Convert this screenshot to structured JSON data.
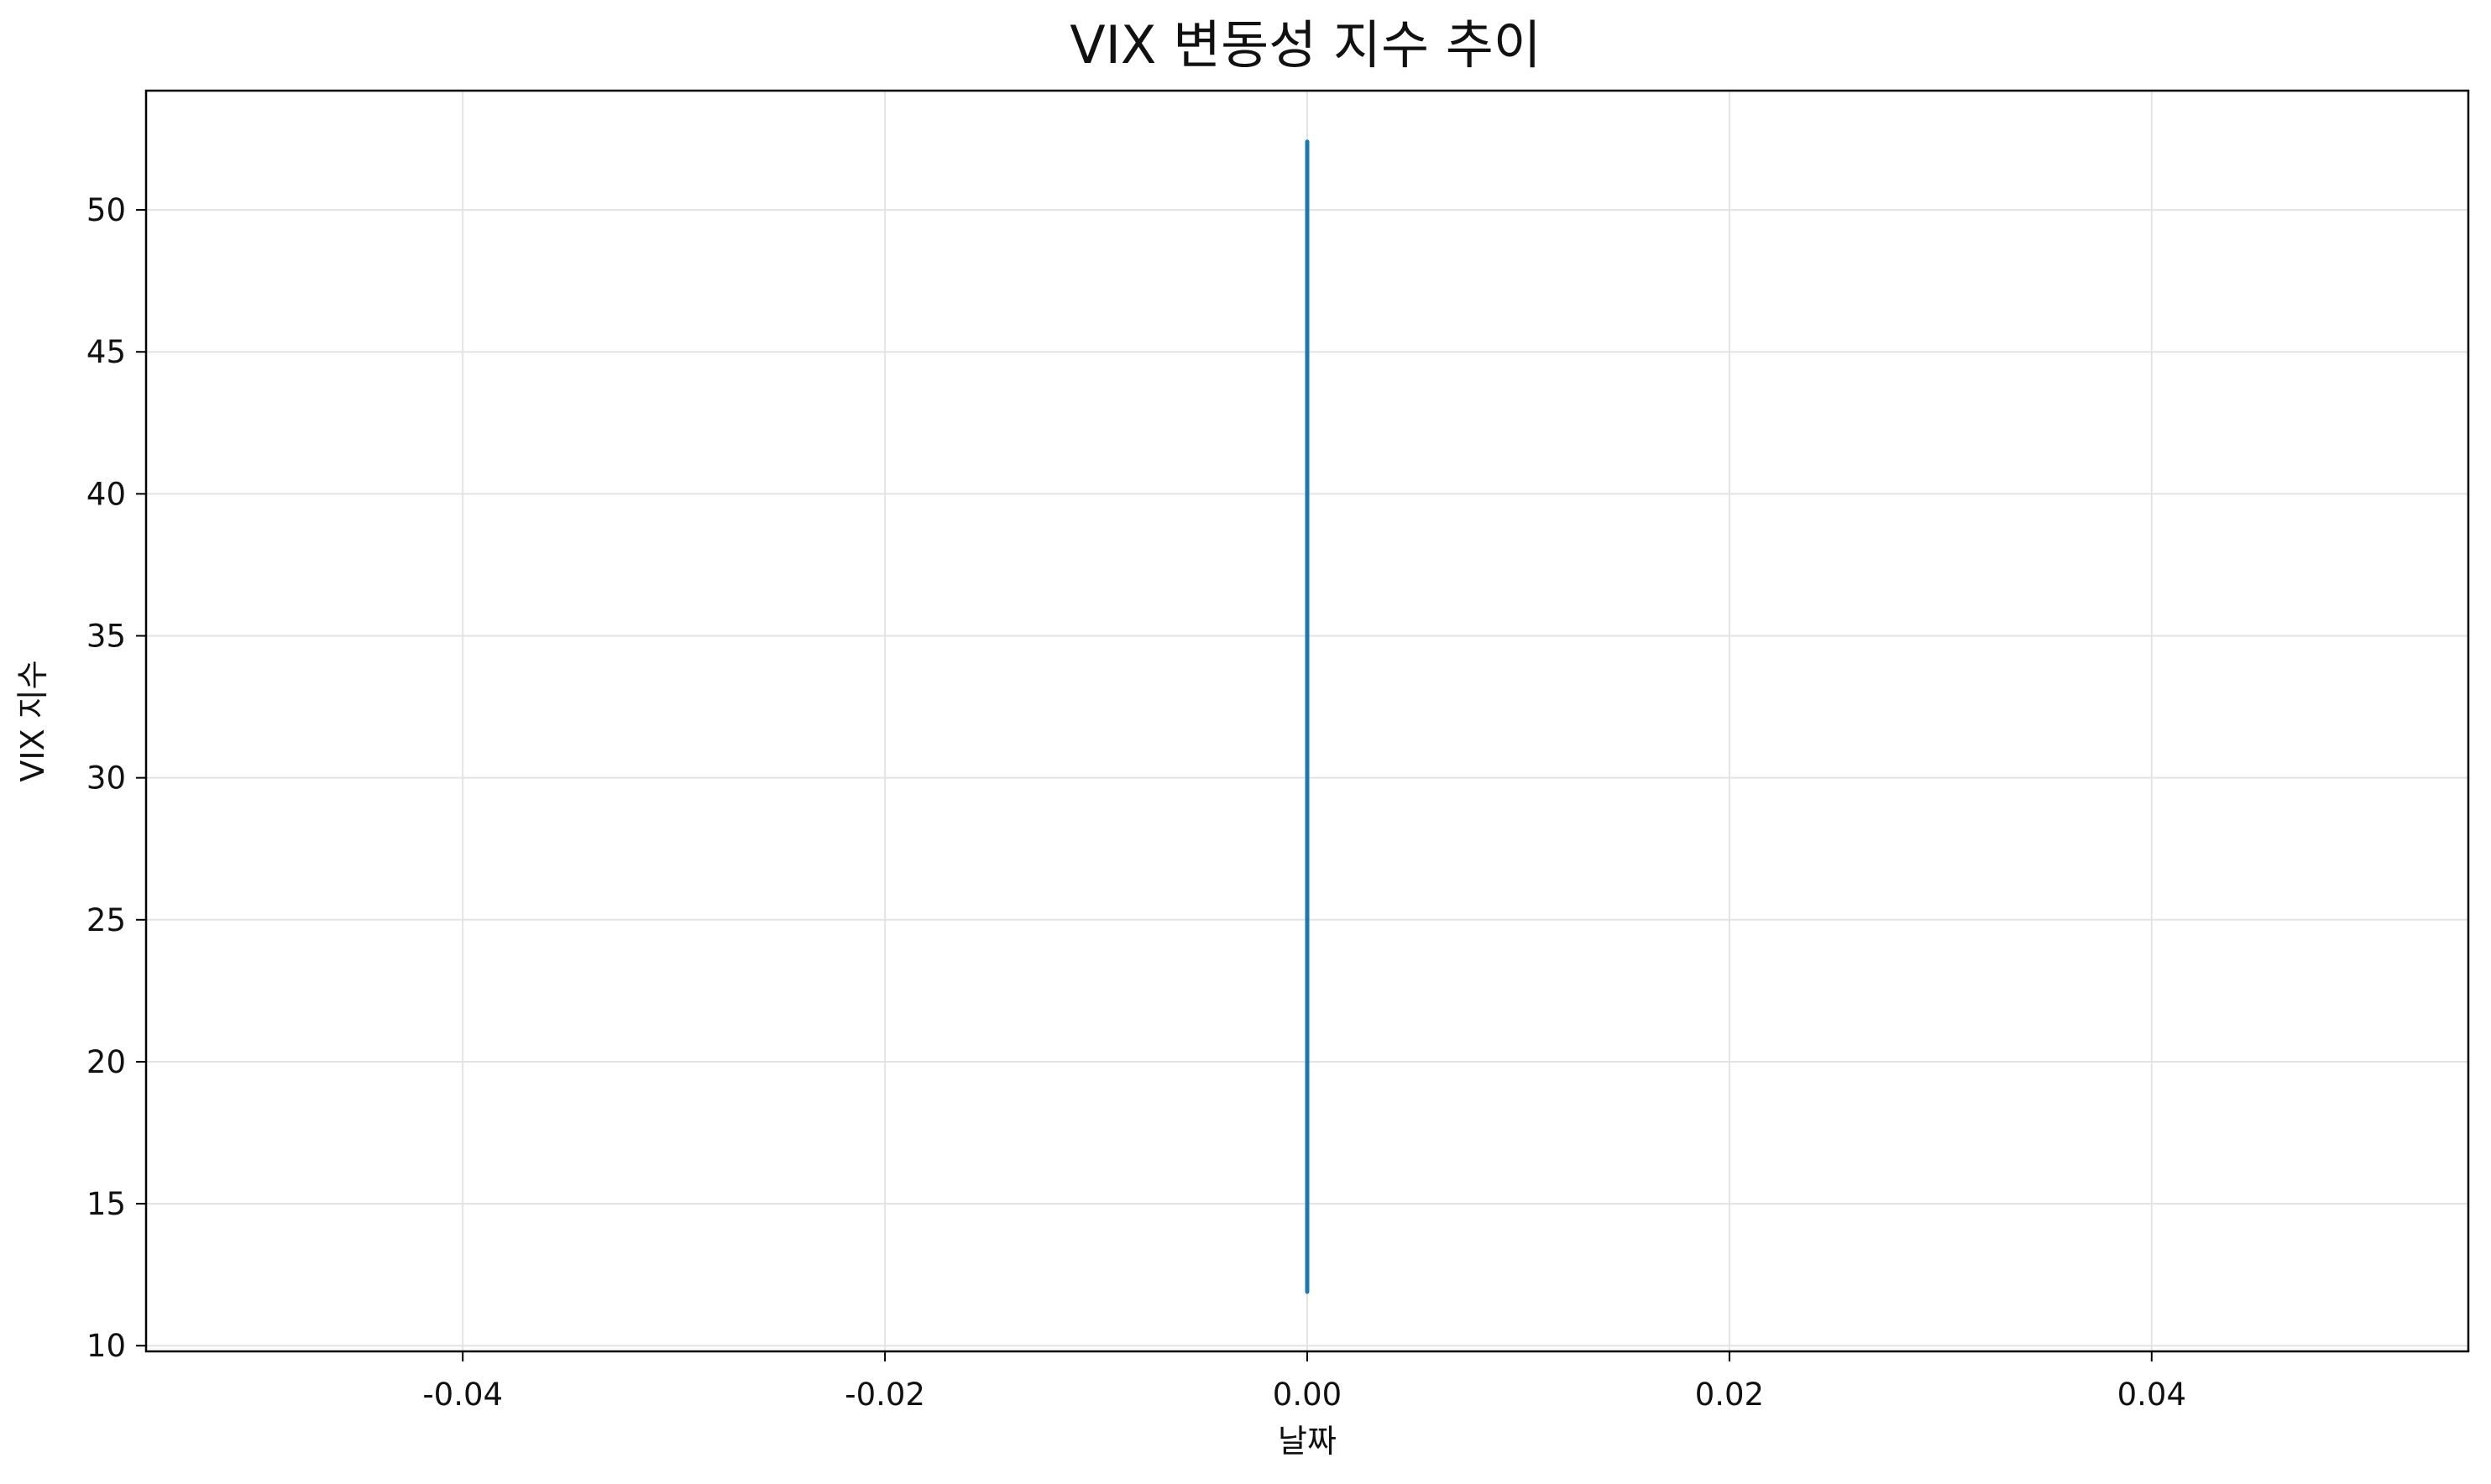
{
  "chart_data": {
    "type": "line",
    "title": "VIX 변동성 지수 추이",
    "xlabel": "날짜",
    "ylabel": "VIX 지수",
    "xlim": [
      -0.055,
      0.055
    ],
    "ylim": [
      9.8,
      54.2
    ],
    "x_ticks": [
      -0.04,
      -0.02,
      0.0,
      0.02,
      0.04
    ],
    "x_tick_labels": [
      "-0.04",
      "-0.02",
      "0.00",
      "0.02",
      "0.04"
    ],
    "y_ticks": [
      10,
      15,
      20,
      25,
      30,
      35,
      40,
      45,
      50
    ],
    "y_tick_labels": [
      "10",
      "15",
      "20",
      "25",
      "30",
      "35",
      "40",
      "45",
      "50"
    ],
    "grid": true,
    "series": [
      {
        "color": "#1f77b4",
        "x": [
          0,
          0
        ],
        "y": [
          11.9,
          52.4
        ]
      }
    ]
  }
}
